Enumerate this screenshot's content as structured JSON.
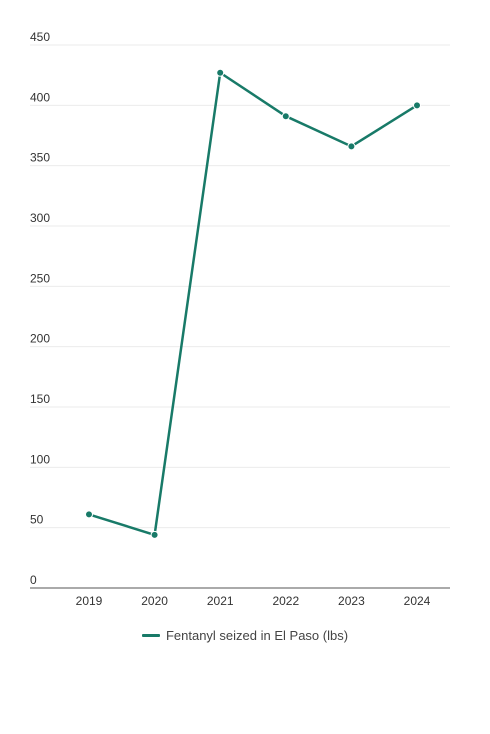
{
  "chart_data": {
    "type": "line",
    "categories": [
      "2019",
      "2020",
      "2021",
      "2022",
      "2023",
      "2024"
    ],
    "series": [
      {
        "name": "Fentanyl seized in El Paso (lbs)",
        "values": [
          61,
          44,
          427,
          391,
          366,
          400
        ],
        "color": "#187a68"
      }
    ],
    "ylim": [
      0,
      450
    ],
    "yticks": [
      "0",
      "50",
      "100",
      "150",
      "200",
      "250",
      "300",
      "350",
      "400",
      "450"
    ],
    "grid": true,
    "legend_position": "bottom"
  }
}
